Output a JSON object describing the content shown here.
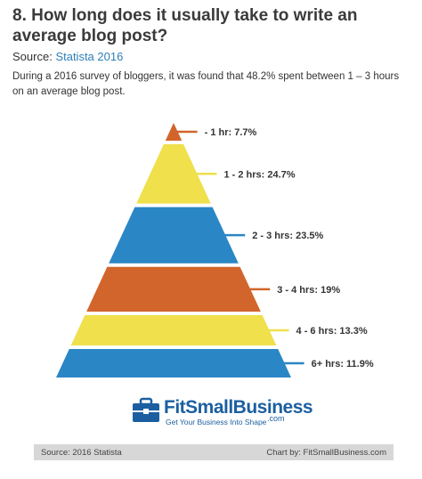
{
  "header": {
    "title": "8. How long does it usually take to write an average blog post?",
    "source_label": "Source:",
    "source_link": "Statista 2016",
    "description": "During a 2016 survey of bloggers, it was found that 48.2% spent between 1 – 3 hours on an average blog post."
  },
  "chart_data": {
    "type": "pyramid",
    "categories": [
      "- 1 hr",
      "1 - 2 hrs",
      "2 - 3 hrs",
      "3 - 4 hrs",
      "4 - 6 hrs",
      "6+ hrs"
    ],
    "values": [
      7.7,
      24.7,
      23.5,
      19,
      13.3,
      11.9
    ],
    "labels": [
      "- 1 hr: 7.7%",
      "1 - 2 hrs: 24.7%",
      "2 - 3 hrs: 23.5%",
      "3 - 4 hrs: 19%",
      "4 - 6 hrs: 13.3%",
      "6+ hrs: 11.9%"
    ],
    "colors": [
      "#d2652b",
      "#efe04c",
      "#2a86c5",
      "#d2652b",
      "#efe04c",
      "#2a86c5"
    ],
    "unit": "%"
  },
  "logo": {
    "name": "FitSmallBusiness",
    "tld": ".com",
    "tagline": "Get Your Business Into Shape",
    "icon": "briefcase-icon",
    "color": "#1c5fa0"
  },
  "footer": {
    "left": "Source: 2016 Statista",
    "right": "Chart by: FitSmallBusiness.com"
  }
}
